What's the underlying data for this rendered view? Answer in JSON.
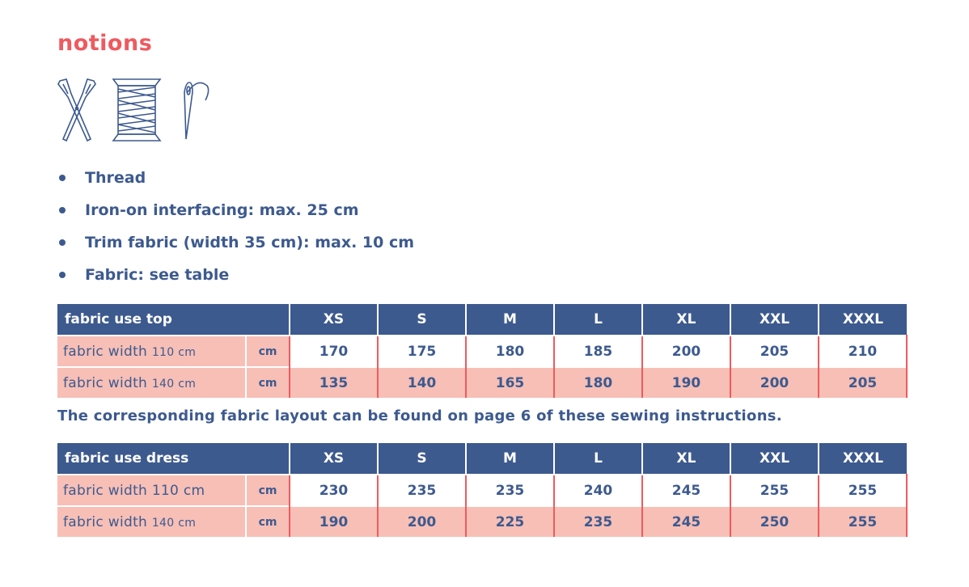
{
  "section_title": "notions",
  "icons": [
    "scissors-icon",
    "thread-spool-icon",
    "needle-icon"
  ],
  "bullets": [
    "Thread",
    "Iron-on interfacing: max. 25 cm",
    "Trim fabric (width 35 cm): max. 10 cm",
    "Fabric: see table"
  ],
  "sizes": [
    "XS",
    "S",
    "M",
    "L",
    "XL",
    "XXL",
    "XXXL"
  ],
  "table_top": {
    "header": "fabric use top",
    "rows": [
      {
        "label": "fabric width",
        "width": "110 cm",
        "unit": "cm",
        "values": [
          "170",
          "175",
          "180",
          "185",
          "200",
          "205",
          "210"
        ]
      },
      {
        "label": "fabric width",
        "width": "140 cm",
        "unit": "cm",
        "values": [
          "135",
          "140",
          "165",
          "180",
          "190",
          "200",
          "205"
        ]
      }
    ]
  },
  "note": "The corresponding fabric layout can be found on page 6 of these sewing instructions.",
  "table_dress": {
    "header": "fabric use dress",
    "rows": [
      {
        "label": "fabric width 110 cm",
        "width": "",
        "unit": "cm",
        "values": [
          "230",
          "235",
          "235",
          "240",
          "245",
          "255",
          "255"
        ]
      },
      {
        "label": "fabric width",
        "width": "140 cm",
        "unit": "cm",
        "values": [
          "190",
          "200",
          "225",
          "235",
          "245",
          "250",
          "255"
        ]
      }
    ]
  },
  "colors": {
    "accent": "#ef5a5f",
    "navy": "#3d5a8f",
    "pink": "#f7bfb6"
  }
}
